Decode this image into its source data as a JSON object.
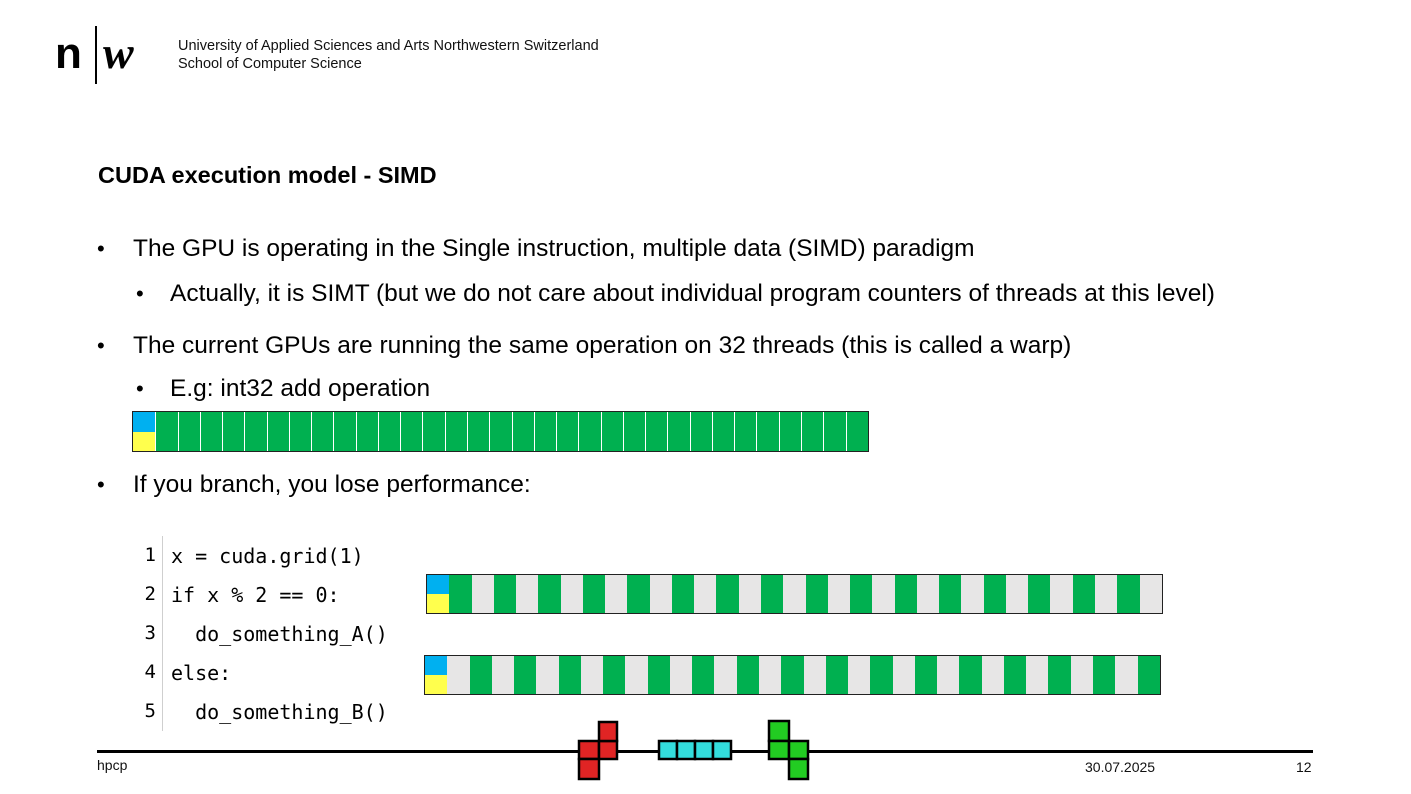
{
  "header": {
    "institution_line1": "University of Applied Sciences and Arts Northwestern Switzerland",
    "institution_line2": "School of Computer Science"
  },
  "slide": {
    "title": "CUDA execution model - SIMD",
    "bullets": [
      "The GPU is operating in the Single instruction, multiple data (SIMD) paradigm",
      "Actually, it is SIMT (but we do not care about individual program counters of threads at this level)",
      "The current GPUs are running the same operation on 32 threads (this is called a warp)",
      "E.g: int32 add operation",
      "If you branch, you lose performance:"
    ],
    "bullet_symbol": "•"
  },
  "code": {
    "lines": [
      {
        "num": "1",
        "text": "x = cuda.grid(1)"
      },
      {
        "num": "2",
        "text": "if x % 2 == 0:"
      },
      {
        "num": "3",
        "text": "  do_something_A()"
      },
      {
        "num": "4",
        "text": "else:"
      },
      {
        "num": "5",
        "text": "  do_something_B()"
      }
    ]
  },
  "warp": {
    "threads": 32,
    "active_color": "#00b050",
    "inactive_color": "#e7e6e6",
    "instruction_colors": [
      "#00b0f0",
      "#ffff4d"
    ],
    "branch_a_active": "even",
    "branch_b_active": "odd"
  },
  "footer": {
    "left": "hpcp",
    "date": "30.07.2025",
    "page": "12"
  }
}
